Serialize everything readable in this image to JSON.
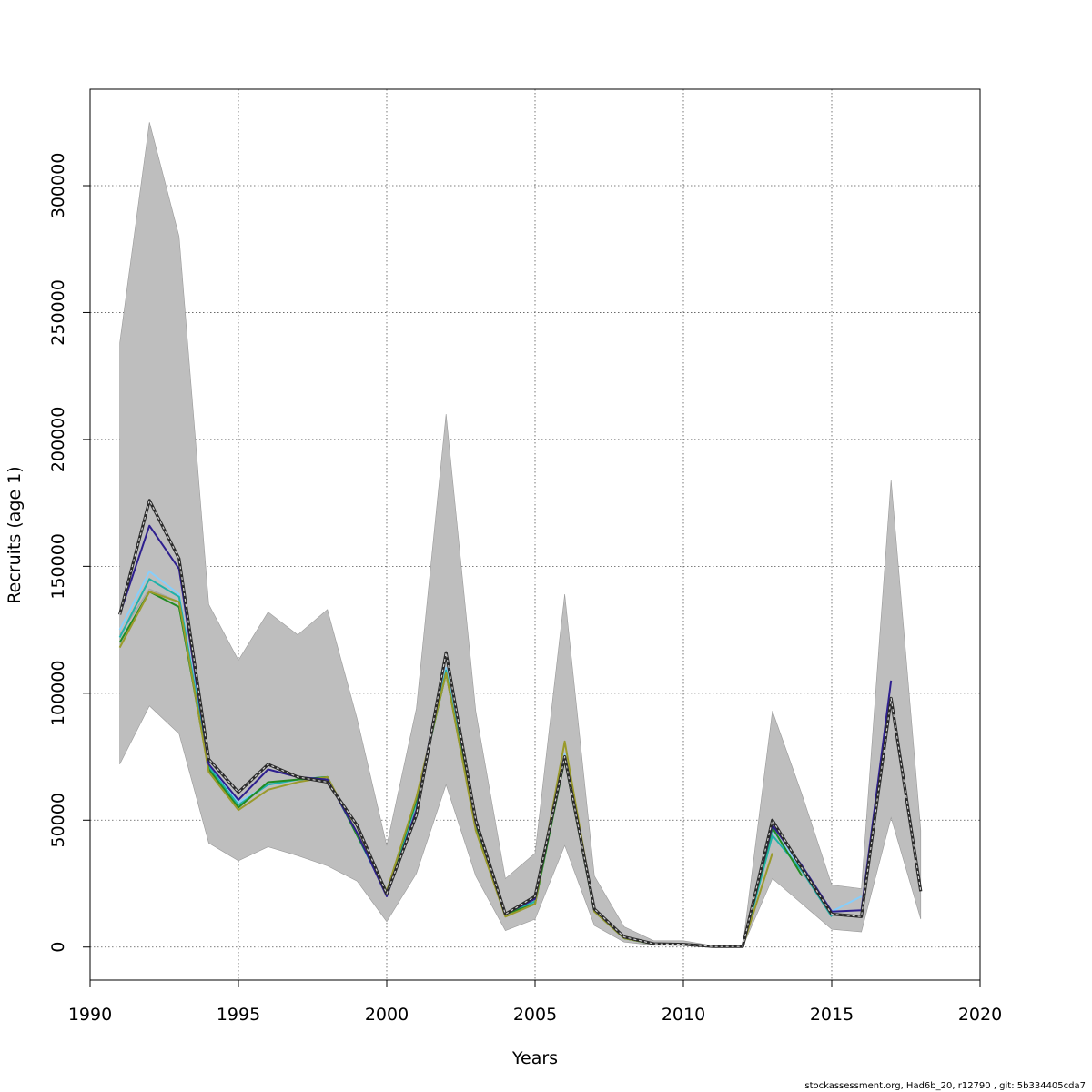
{
  "chart_data": {
    "type": "line",
    "xlabel": "Years",
    "ylabel": "Recruits (age 1)",
    "footer": "stockassessment.org, Had6b_20, r12790 , git: 5b334405cda7",
    "xlim": [
      1990,
      2020
    ],
    "ylim": [
      -13000,
      338000
    ],
    "x_ticks": [
      1990,
      1995,
      2000,
      2005,
      2010,
      2015,
      2020
    ],
    "x_tick_labels": [
      "1990",
      "1995",
      "2000",
      "2005",
      "2010",
      "2015",
      "2020"
    ],
    "y_ticks": [
      0,
      50000,
      100000,
      150000,
      200000,
      250000,
      300000
    ],
    "y_tick_labels": [
      "0",
      "50000",
      "100000",
      "150000",
      "200000",
      "250000",
      "300000"
    ],
    "grid": true,
    "confidence_band": {
      "fill": "#bebebe",
      "x": [
        1991,
        1992,
        1993,
        1994,
        1995,
        1996,
        1997,
        1998,
        1999,
        2000,
        2001,
        2002,
        2003,
        2004,
        2005,
        2006,
        2007,
        2008,
        2009,
        2010,
        2011,
        2012,
        2013,
        2014,
        2015,
        2016,
        2017,
        2018
      ],
      "upper": [
        238000,
        325000,
        280000,
        135000,
        113000,
        132000,
        123000,
        133000,
        90000,
        40000,
        94000,
        210000,
        93000,
        27000,
        37000,
        139000,
        28000,
        8000,
        2500,
        2500,
        500,
        500,
        93000,
        60000,
        24500,
        23000,
        184000,
        46000
      ],
      "lower": [
        72000,
        95000,
        84000,
        41000,
        34000,
        39500,
        36000,
        32000,
        26000,
        10000,
        29000,
        64000,
        28000,
        6500,
        11000,
        40000,
        8500,
        2000,
        700,
        700,
        100,
        100,
        27000,
        17000,
        7000,
        6000,
        51000,
        11000
      ]
    },
    "series": [
      {
        "color": "#a6a6a6",
        "width": 1.5,
        "dash": false,
        "x": [
          1991,
          1992,
          1993,
          1994,
          1995,
          1996,
          1997,
          1998,
          1999,
          2000,
          2001,
          2002,
          2003,
          2004,
          2005,
          2006,
          2007,
          2008,
          2009,
          2010,
          2011,
          2012,
          2013,
          2014,
          2015
        ],
        "values": [
          123000,
          141000,
          136000,
          71000,
          56000,
          64000,
          66000,
          66000,
          44000,
          22000,
          57000,
          108000,
          47000,
          13000,
          18000,
          74000,
          15000,
          3500,
          1200,
          1000,
          200,
          200,
          46000,
          31000,
          13000
        ]
      },
      {
        "color": "#87cefa",
        "width": 2,
        "dash": false,
        "x": [
          1991,
          1992,
          1993,
          1994,
          1995,
          1996,
          1997,
          1998,
          1999,
          2000,
          2001,
          2002,
          2003,
          2004,
          2005,
          2006,
          2007,
          2008,
          2009,
          2010,
          2011,
          2012,
          2013,
          2014,
          2015,
          2016
        ],
        "values": [
          125000,
          148000,
          139000,
          72000,
          57000,
          64000,
          66000,
          67000,
          44000,
          21000,
          57000,
          110000,
          47000,
          13000,
          18000,
          76000,
          15000,
          3500,
          1200,
          1000,
          200,
          200,
          46000,
          31000,
          14000,
          20000
        ]
      },
      {
        "color": "#20b2aa",
        "width": 2,
        "dash": false,
        "x": [
          1991,
          1992,
          1993,
          1994,
          1995,
          1996,
          1997,
          1998,
          1999,
          2000,
          2001,
          2002,
          2003,
          2004,
          2005,
          2006,
          2007,
          2008,
          2009,
          2010,
          2011,
          2012,
          2013,
          2014,
          2015
        ],
        "values": [
          122000,
          145000,
          138000,
          71000,
          56000,
          64000,
          66000,
          67000,
          44000,
          21000,
          57000,
          109000,
          47000,
          13000,
          18000,
          75000,
          15000,
          3500,
          1200,
          1000,
          200,
          200,
          44000,
          30000,
          12000
        ]
      },
      {
        "color": "#228b22",
        "width": 2,
        "dash": false,
        "x": [
          1991,
          1992,
          1993,
          1994,
          1995,
          1996,
          1997,
          1998,
          1999,
          2000,
          2001,
          2002,
          2003,
          2004,
          2005,
          2006,
          2007,
          2008,
          2009,
          2010,
          2011,
          2012,
          2013,
          2014
        ],
        "values": [
          120000,
          140000,
          134000,
          70000,
          55000,
          65000,
          66000,
          67000,
          44000,
          22000,
          58000,
          108000,
          47000,
          13000,
          17000,
          74000,
          14000,
          3500,
          1200,
          1000,
          200,
          200,
          47000,
          28000
        ]
      },
      {
        "color": "#9a9a2a",
        "width": 2,
        "dash": false,
        "x": [
          1991,
          1992,
          1993,
          1994,
          1995,
          1996,
          1997,
          1998,
          1999,
          2000,
          2001,
          2002,
          2003,
          2004,
          2005,
          2006,
          2007,
          2008,
          2009,
          2010,
          2011,
          2012,
          2013
        ],
        "values": [
          118000,
          140000,
          136000,
          69000,
          54000,
          62000,
          65000,
          67000,
          45000,
          22000,
          59000,
          108000,
          46000,
          12000,
          17000,
          81000,
          14000,
          3500,
          1200,
          1000,
          200,
          200,
          37000
        ]
      },
      {
        "color": "#2e1f8f",
        "width": 2,
        "dash": false,
        "x": [
          1991,
          1992,
          1993,
          1994,
          1995,
          1996,
          1997,
          1998,
          1999,
          2000,
          2001,
          2002,
          2003,
          2004,
          2005,
          2006,
          2007,
          2008,
          2009,
          2010,
          2011,
          2012,
          2013,
          2014,
          2015,
          2016,
          2017
        ],
        "values": [
          131000,
          166000,
          149000,
          72000,
          58000,
          70000,
          67000,
          66000,
          45000,
          20000,
          54000,
          116000,
          49000,
          13000,
          19000,
          75000,
          15000,
          4000,
          1300,
          1100,
          200,
          200,
          48000,
          32000,
          14000,
          14500,
          105000
        ]
      },
      {
        "color": "#000000",
        "width": 2,
        "dash": true,
        "x": [
          1991,
          1992,
          1993,
          1994,
          1995,
          1996,
          1997,
          1998,
          1999,
          2000,
          2001,
          2002,
          2003,
          2004,
          2005,
          2006,
          2007,
          2008,
          2009,
          2010,
          2011,
          2012,
          2013,
          2014,
          2015,
          2016,
          2017,
          2018
        ],
        "values": [
          131000,
          176000,
          153000,
          74000,
          61000,
          72000,
          67000,
          65000,
          48000,
          21000,
          52000,
          116000,
          50000,
          13000,
          20000,
          75000,
          15000,
          4000,
          1300,
          1100,
          200,
          200,
          50000,
          31000,
          13000,
          12000,
          98000,
          22000
        ]
      }
    ]
  }
}
